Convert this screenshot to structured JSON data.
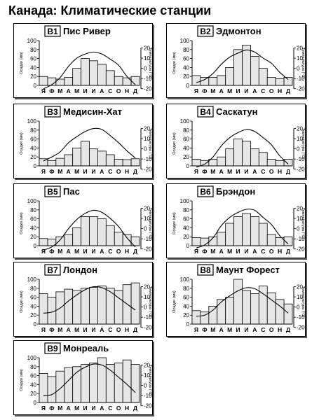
{
  "page_title": "Канада: Климатические станции",
  "chart_data": [
    {
      "type": "bar+line",
      "code": "B1",
      "name": "Пис Ривер",
      "ylabel_left": "Осадки (мм)",
      "ylabel_right": "Температура (°C)",
      "categories": [
        "Я",
        "Ф",
        "М",
        "А",
        "М",
        "И",
        "И",
        "А",
        "С",
        "О",
        "Н",
        "Д"
      ],
      "precip_ylim": [
        0,
        100
      ],
      "precip_ticks": [
        0,
        20,
        40,
        60,
        80,
        100
      ],
      "temp_ylim": [
        -25,
        30
      ],
      "temp_ticks": [
        -20,
        -10,
        0,
        10,
        20
      ],
      "precipitation": [
        20,
        17,
        14,
        18,
        38,
        60,
        55,
        47,
        33,
        20,
        17,
        20
      ],
      "temperature": [
        -20,
        -16,
        -9,
        2,
        10,
        14,
        16,
        14,
        9,
        3,
        -8,
        -16
      ]
    },
    {
      "type": "bar+line",
      "code": "B2",
      "name": "Эдмонтон",
      "ylabel_left": "Осадки (мм)",
      "ylabel_right": "Температура (°C)",
      "categories": [
        "Я",
        "Ф",
        "М",
        "А",
        "М",
        "И",
        "И",
        "А",
        "С",
        "О",
        "Н",
        "Д"
      ],
      "precip_ylim": [
        0,
        100
      ],
      "precip_ticks": [
        0,
        20,
        40,
        60,
        80,
        100
      ],
      "temp_ylim": [
        -25,
        30
      ],
      "temp_ticks": [
        -20,
        -10,
        0,
        10,
        20
      ],
      "precipitation": [
        22,
        18,
        18,
        22,
        40,
        80,
        90,
        65,
        38,
        18,
        15,
        18
      ],
      "temperature": [
        -14,
        -11,
        -5,
        4,
        11,
        15,
        18,
        16,
        10,
        5,
        -4,
        -11
      ]
    },
    {
      "type": "bar+line",
      "code": "B3",
      "name": "Медисин-Хат",
      "ylabel_left": "Осадки (мм)",
      "ylabel_right": "Температура (°C)",
      "categories": [
        "Я",
        "Ф",
        "М",
        "А",
        "М",
        "И",
        "И",
        "А",
        "С",
        "О",
        "Н",
        "Д"
      ],
      "precip_ylim": [
        0,
        100
      ],
      "precip_ticks": [
        0,
        20,
        40,
        60,
        80,
        100
      ],
      "temp_ylim": [
        -25,
        30
      ],
      "temp_ticks": [
        -20,
        -10,
        0,
        10,
        20
      ],
      "precipitation": [
        16,
        12,
        17,
        25,
        40,
        55,
        38,
        33,
        25,
        15,
        14,
        16
      ],
      "temperature": [
        -12,
        -8,
        -3,
        6,
        12,
        17,
        20,
        19,
        13,
        6,
        -2,
        -9
      ]
    },
    {
      "type": "bar+line",
      "code": "B4",
      "name": "Саскатун",
      "ylabel_left": "Осадки (мм)",
      "ylabel_right": "Температура (°C)",
      "categories": [
        "Я",
        "Ф",
        "М",
        "А",
        "М",
        "И",
        "И",
        "А",
        "С",
        "О",
        "Н",
        "Д"
      ],
      "precip_ylim": [
        0,
        100
      ],
      "precip_ticks": [
        0,
        20,
        40,
        60,
        80,
        100
      ],
      "temp_ylim": [
        -25,
        30
      ],
      "temp_ticks": [
        -20,
        -10,
        0,
        10,
        20
      ],
      "precipitation": [
        15,
        12,
        15,
        20,
        38,
        60,
        55,
        38,
        30,
        15,
        12,
        15
      ],
      "temperature": [
        -18,
        -15,
        -8,
        3,
        11,
        16,
        19,
        17,
        11,
        4,
        -7,
        -15
      ]
    },
    {
      "type": "bar+line",
      "code": "B5",
      "name": "Пас",
      "ylabel_left": "Осадки (мм)",
      "ylabel_right": "Температура (°C)",
      "categories": [
        "Я",
        "Ф",
        "М",
        "А",
        "М",
        "И",
        "И",
        "А",
        "С",
        "О",
        "Н",
        "Д"
      ],
      "precip_ylim": [
        0,
        100
      ],
      "precip_ticks": [
        0,
        20,
        40,
        60,
        80,
        100
      ],
      "temp_ylim": [
        -25,
        30
      ],
      "temp_ticks": [
        -20,
        -10,
        0,
        10,
        20
      ],
      "precipitation": [
        16,
        15,
        20,
        25,
        40,
        65,
        65,
        60,
        45,
        30,
        25,
        20
      ],
      "temperature": [
        -21,
        -18,
        -11,
        0,
        9,
        15,
        18,
        16,
        10,
        2,
        -9,
        -18
      ]
    },
    {
      "type": "bar+line",
      "code": "B6",
      "name": "Брэндон",
      "ylabel_left": "Осадки (мм)",
      "ylabel_right": "Температура (°C)",
      "categories": [
        "Я",
        "Ф",
        "М",
        "А",
        "М",
        "И",
        "И",
        "А",
        "С",
        "О",
        "Н",
        "Д"
      ],
      "precip_ylim": [
        0,
        100
      ],
      "precip_ticks": [
        0,
        20,
        40,
        60,
        80,
        100
      ],
      "temp_ylim": [
        -25,
        30
      ],
      "temp_ticks": [
        -20,
        -10,
        0,
        10,
        20
      ],
      "precipitation": [
        18,
        17,
        20,
        30,
        50,
        65,
        72,
        65,
        50,
        25,
        18,
        20
      ],
      "temperature": [
        -19,
        -16,
        -9,
        3,
        11,
        16,
        19,
        18,
        11,
        4,
        -7,
        -15
      ]
    },
    {
      "type": "bar+line",
      "code": "B7",
      "name": "Лондон",
      "ylabel_left": "Осадки (мм)",
      "ylabel_right": "Температура (°C)",
      "categories": [
        "Я",
        "Ф",
        "М",
        "А",
        "М",
        "И",
        "И",
        "А",
        "С",
        "О",
        "Н",
        "Д"
      ],
      "precip_ylim": [
        0,
        100
      ],
      "precip_ticks": [
        0,
        20,
        40,
        60,
        80,
        100
      ],
      "temp_ylim": [
        -25,
        30
      ],
      "temp_ticks": [
        -20,
        -10,
        0,
        10,
        20
      ],
      "precipitation": [
        68,
        60,
        72,
        78,
        75,
        80,
        82,
        85,
        80,
        75,
        88,
        92
      ],
      "temperature": [
        -6,
        -5,
        -1,
        6,
        12,
        17,
        20,
        19,
        15,
        9,
        3,
        -3
      ]
    },
    {
      "type": "bar+line",
      "code": "B8",
      "name": "Маунт Форест",
      "ylabel_left": "Осадки (мм)",
      "ylabel_right": "Температура (°C)",
      "categories": [
        "Я",
        "Ф",
        "М",
        "А",
        "М",
        "И",
        "И",
        "А",
        "С",
        "О",
        "Н",
        "Д"
      ],
      "precip_ylim": [
        0,
        100
      ],
      "precip_ticks": [
        0,
        20,
        40,
        60,
        80,
        100
      ],
      "temp_ylim": [
        -25,
        30
      ],
      "temp_ticks": [
        -20,
        -10,
        0,
        10,
        20
      ],
      "precipitation": [
        30,
        27,
        40,
        55,
        60,
        100,
        75,
        68,
        85,
        70,
        55,
        45
      ],
      "temperature": [
        -9,
        -8,
        -3,
        5,
        11,
        16,
        19,
        18,
        13,
        7,
        1,
        -6
      ]
    },
    {
      "type": "bar+line",
      "code": "B9",
      "name": "Монреаль",
      "ylabel_left": "Осадки (мм)",
      "ylabel_right": "Температура (°C)",
      "categories": [
        "Я",
        "Ф",
        "М",
        "А",
        "М",
        "И",
        "И",
        "А",
        "С",
        "О",
        "Н",
        "Д"
      ],
      "precip_ylim": [
        0,
        100
      ],
      "precip_ticks": [
        0,
        20,
        40,
        60,
        80,
        100
      ],
      "temp_ylim": [
        -25,
        30
      ],
      "temp_ticks": [
        -20,
        -10,
        0,
        10,
        20
      ],
      "precipitation": [
        65,
        58,
        70,
        78,
        80,
        85,
        88,
        100,
        85,
        88,
        95,
        85
      ],
      "temperature": [
        -10,
        -9,
        -3,
        5,
        13,
        18,
        21,
        20,
        15,
        8,
        1,
        -7
      ]
    }
  ]
}
